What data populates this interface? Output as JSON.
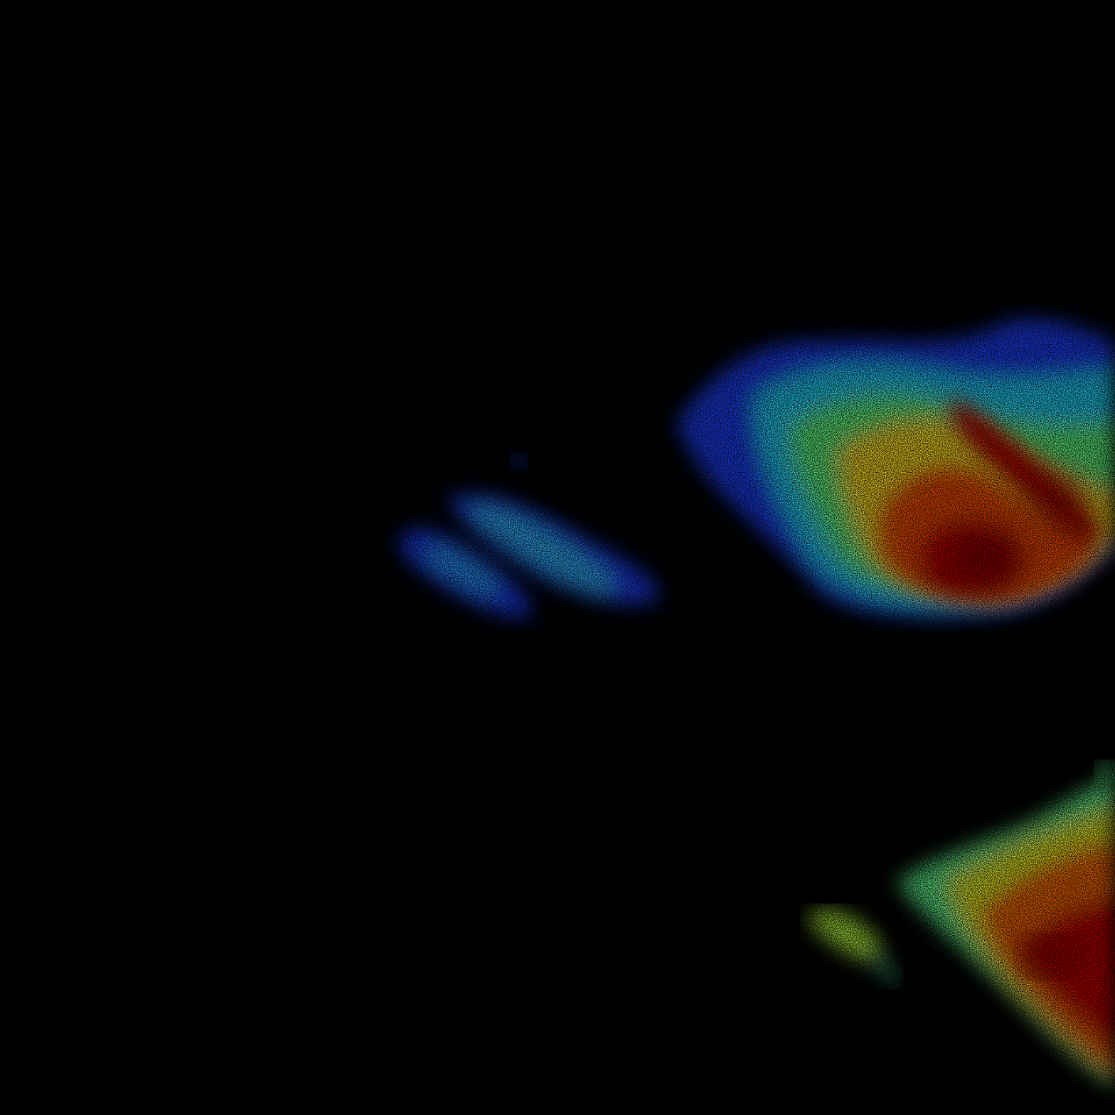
{
  "image": {
    "kind": "false-color-intensity-map",
    "background_color": "#000000",
    "colormap": [
      "#0000ff",
      "#0080ff",
      "#00e0ff",
      "#40ffb0",
      "#c0ff40",
      "#ffd000",
      "#ff6000",
      "#e00000",
      "#800000"
    ],
    "regions": [
      {
        "name": "upper-right-cloud",
        "peak_color": "#8b0000",
        "edge_color": "#1030ff"
      },
      {
        "name": "left-streak-cluster",
        "peak_color": "#30c0ff",
        "edge_color": "#0020ff"
      },
      {
        "name": "lower-right-mass",
        "peak_color": "#c80000",
        "edge_color": "#60ff90"
      },
      {
        "name": "lower-small-blob",
        "peak_color": "#d0ff40",
        "edge_color": "#60ffb0"
      }
    ]
  }
}
